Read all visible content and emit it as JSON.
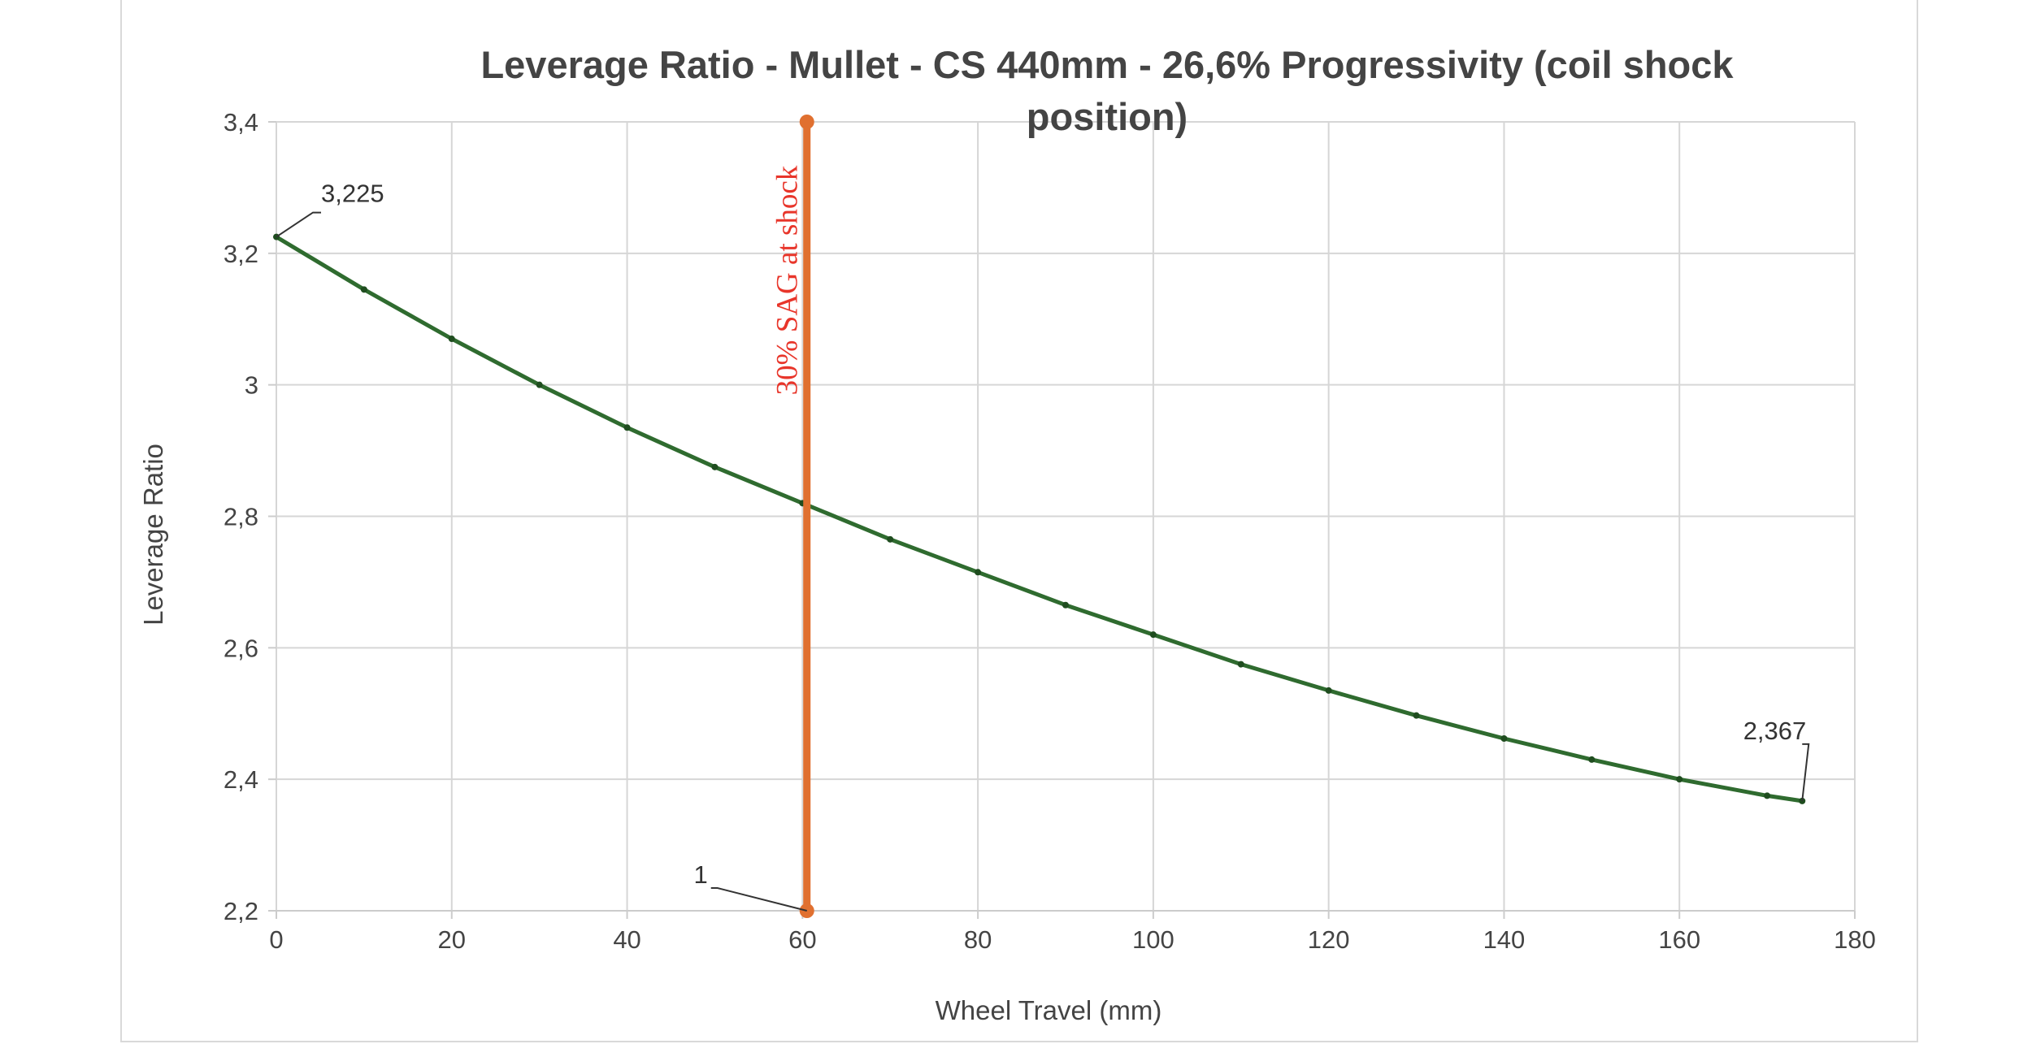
{
  "chart_data": {
    "type": "line",
    "title": "Leverage Ratio - Mullet - CS 440mm - 26,6% Progressivity (coil shock position)",
    "title_lines": [
      "Leverage Ratio - Mullet - CS 440mm - 26,6% Progressivity (coil shock",
      "position)"
    ],
    "xlabel": "Wheel Travel (mm)",
    "ylabel": "Leverage Ratio",
    "xlim": [
      0,
      180
    ],
    "ylim": [
      2.2,
      3.4
    ],
    "x_ticks": [
      0,
      20,
      40,
      60,
      80,
      100,
      120,
      140,
      160,
      180
    ],
    "x_tick_labels": [
      "0",
      "20",
      "40",
      "60",
      "80",
      "100",
      "120",
      "140",
      "160",
      "180"
    ],
    "y_ticks": [
      2.2,
      2.4,
      2.6,
      2.8,
      3.0,
      3.2,
      3.4
    ],
    "y_tick_labels": [
      "2,2",
      "2,4",
      "2,6",
      "2,8",
      "3",
      "3,2",
      "3,4"
    ],
    "grid": true,
    "legend": "none",
    "series": [
      {
        "color": "#2f6b2f",
        "x": [
          0,
          10,
          20,
          30,
          40,
          50,
          60,
          70,
          80,
          90,
          100,
          110,
          120,
          130,
          140,
          150,
          160,
          170,
          174
        ],
        "y": [
          3.225,
          3.145,
          3.07,
          3.0,
          2.935,
          2.875,
          2.82,
          2.765,
          2.715,
          2.665,
          2.62,
          2.575,
          2.535,
          2.497,
          2.462,
          2.43,
          2.4,
          2.375,
          2.367
        ]
      },
      {
        "color": "#e07030",
        "x": [
          60.5,
          60.5
        ],
        "y": [
          2.2,
          3.4
        ]
      }
    ],
    "data_labels": [
      {
        "x": 0,
        "y": 3.225,
        "text": "3,225"
      },
      {
        "x": 174,
        "y": 2.367,
        "text": "2,367"
      },
      {
        "x": 60.5,
        "y": 2.2,
        "text": "1"
      }
    ],
    "annotation": {
      "x": 60.5,
      "text": "30% SAG at shock",
      "color": "#e8352a"
    }
  }
}
